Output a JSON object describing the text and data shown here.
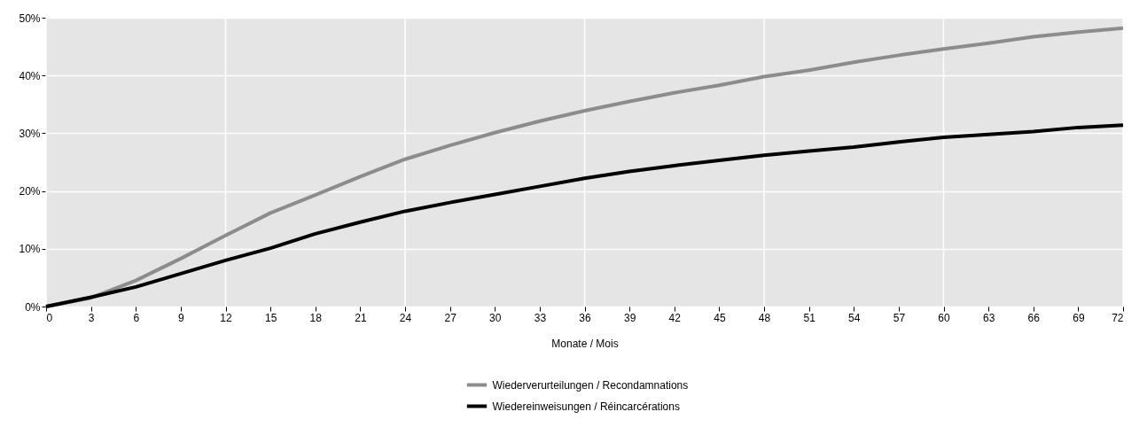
{
  "chart_data": {
    "type": "line",
    "xlabel": "Monate / Mois",
    "x": [
      0,
      3,
      6,
      9,
      12,
      15,
      18,
      21,
      24,
      27,
      30,
      33,
      36,
      39,
      42,
      45,
      48,
      51,
      54,
      57,
      60,
      63,
      66,
      69,
      72
    ],
    "series": [
      {
        "name": "Wiederverurteilungen / Recondamnations",
        "color": "#8c8c8c",
        "values": [
          0,
          1.5,
          4.5,
          8.3,
          12.3,
          16.2,
          19.3,
          22.5,
          25.5,
          27.9,
          30.1,
          32.1,
          33.9,
          35.5,
          37.0,
          38.3,
          39.8,
          40.9,
          42.3,
          43.5,
          44.6,
          45.6,
          46.7,
          47.5,
          48.2
        ]
      },
      {
        "name": "Wiedereinweisungen / Réincarcérations",
        "color": "#000000",
        "values": [
          0,
          1.6,
          3.4,
          5.7,
          8.0,
          10.1,
          12.6,
          14.6,
          16.5,
          18.0,
          19.4,
          20.8,
          22.2,
          23.4,
          24.4,
          25.3,
          26.2,
          26.9,
          27.6,
          28.5,
          29.3,
          29.8,
          30.3,
          31.0,
          31.4
        ]
      }
    ],
    "xlim": [
      0,
      72
    ],
    "xticks": [
      0,
      3,
      6,
      9,
      12,
      15,
      18,
      21,
      24,
      27,
      30,
      33,
      36,
      39,
      42,
      45,
      48,
      51,
      54,
      57,
      60,
      63,
      66,
      69,
      72
    ],
    "ylim": [
      0,
      50
    ],
    "yticks": [
      {
        "value": 0,
        "label": "0%"
      },
      {
        "value": 10,
        "label": "10%"
      },
      {
        "value": 20,
        "label": "20%"
      },
      {
        "value": 30,
        "label": "30%"
      },
      {
        "value": 40,
        "label": "40%"
      },
      {
        "value": 50,
        "label": "50%"
      }
    ],
    "grid": true,
    "legend": "bottom",
    "marker": "none",
    "line_style": "solid"
  }
}
